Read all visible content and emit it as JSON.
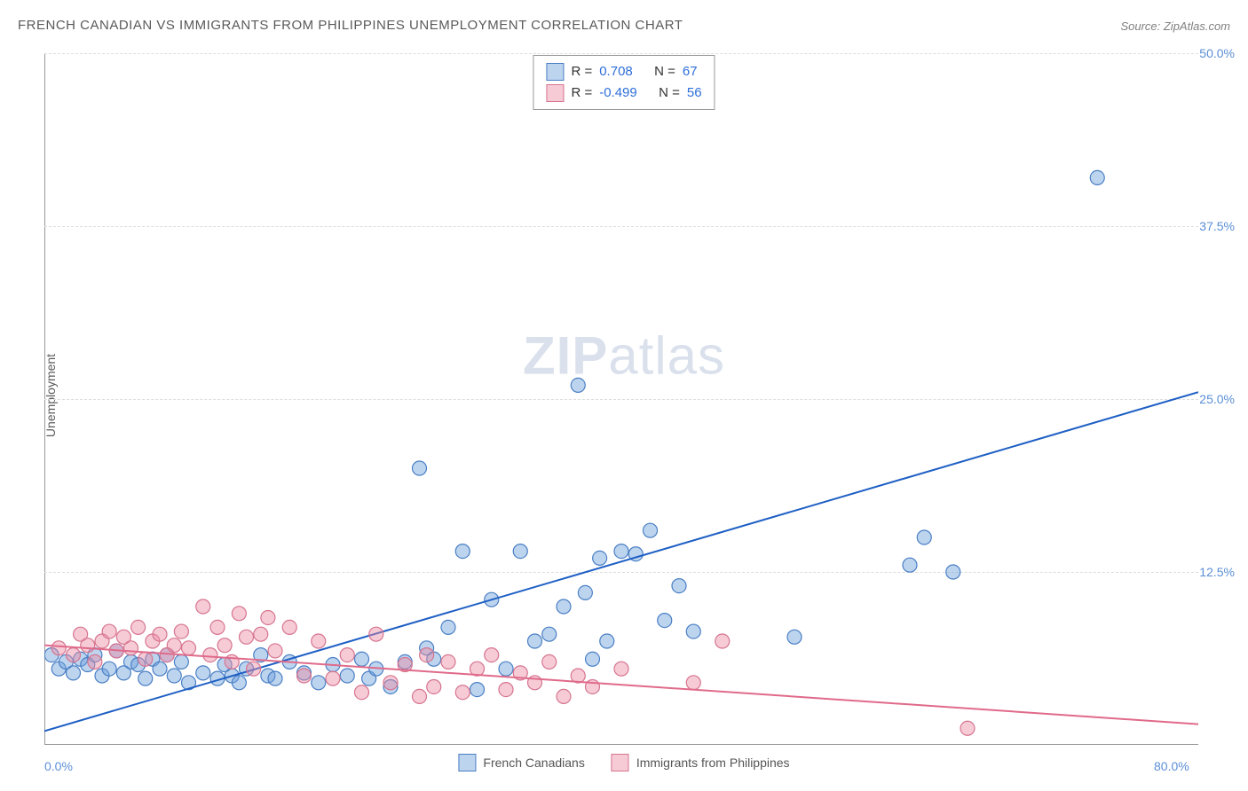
{
  "title": "FRENCH CANADIAN VS IMMIGRANTS FROM PHILIPPINES UNEMPLOYMENT CORRELATION CHART",
  "source": "Source: ZipAtlas.com",
  "ylabel": "Unemployment",
  "watermark_bold": "ZIP",
  "watermark_light": "atlas",
  "chart": {
    "type": "scatter-with-regression",
    "background_color": "#ffffff",
    "grid_color": "#dddddd",
    "axis_color": "#999999",
    "tick_label_color": "#5b8fd6",
    "xlim": [
      0,
      80
    ],
    "ylim": [
      0,
      50
    ],
    "x_ticks": [
      {
        "v": 0,
        "label": "0.0%"
      },
      {
        "v": 80,
        "label": "80.0%"
      }
    ],
    "y_ticks": [
      {
        "v": 12.5,
        "label": "12.5%"
      },
      {
        "v": 25,
        "label": "25.0%"
      },
      {
        "v": 37.5,
        "label": "37.5%"
      },
      {
        "v": 50,
        "label": "50.0%"
      }
    ],
    "marker_radius": 8,
    "marker_stroke_width": 1.2,
    "line_width": 2,
    "series": [
      {
        "name": "French Canadians",
        "color_fill": "rgba(108,160,220,0.45)",
        "color_stroke": "#4a7fc4",
        "line_color": "#1e5fc4",
        "R": "0.708",
        "N": "67",
        "regression": {
          "x1": 0,
          "y1": 1.0,
          "x2": 80,
          "y2": 25.5
        },
        "points": [
          [
            0.5,
            6.5
          ],
          [
            1,
            5.5
          ],
          [
            1.5,
            6
          ],
          [
            2,
            5.2
          ],
          [
            2.5,
            6.2
          ],
          [
            3,
            5.8
          ],
          [
            3.5,
            6.5
          ],
          [
            4,
            5
          ],
          [
            4.5,
            5.5
          ],
          [
            5,
            6.8
          ],
          [
            5.5,
            5.2
          ],
          [
            6,
            6
          ],
          [
            6.5,
            5.8
          ],
          [
            7,
            4.8
          ],
          [
            7.5,
            6.2
          ],
          [
            8,
            5.5
          ],
          [
            8.5,
            6.5
          ],
          [
            9,
            5
          ],
          [
            9.5,
            6
          ],
          [
            10,
            4.5
          ],
          [
            11,
            5.2
          ],
          [
            12,
            4.8
          ],
          [
            12.5,
            5.8
          ],
          [
            13,
            5
          ],
          [
            13.5,
            4.5
          ],
          [
            14,
            5.5
          ],
          [
            15,
            6.5
          ],
          [
            15.5,
            5
          ],
          [
            16,
            4.8
          ],
          [
            17,
            6
          ],
          [
            18,
            5.2
          ],
          [
            19,
            4.5
          ],
          [
            20,
            5.8
          ],
          [
            21,
            5
          ],
          [
            22,
            6.2
          ],
          [
            22.5,
            4.8
          ],
          [
            23,
            5.5
          ],
          [
            24,
            4.2
          ],
          [
            25,
            6
          ],
          [
            26,
            20
          ],
          [
            26.5,
            7
          ],
          [
            27,
            6.2
          ],
          [
            28,
            8.5
          ],
          [
            29,
            14
          ],
          [
            30,
            4
          ],
          [
            31,
            10.5
          ],
          [
            32,
            5.5
          ],
          [
            33,
            14
          ],
          [
            34,
            7.5
          ],
          [
            35,
            8
          ],
          [
            36,
            10
          ],
          [
            37,
            26
          ],
          [
            37.5,
            11
          ],
          [
            38,
            6.2
          ],
          [
            38.5,
            13.5
          ],
          [
            39,
            7.5
          ],
          [
            40,
            14
          ],
          [
            41,
            13.8
          ],
          [
            42,
            15.5
          ],
          [
            43,
            9
          ],
          [
            44,
            11.5
          ],
          [
            45,
            8.2
          ],
          [
            52,
            7.8
          ],
          [
            60,
            13
          ],
          [
            61,
            15
          ],
          [
            73,
            41
          ],
          [
            63,
            12.5
          ]
        ]
      },
      {
        "name": "Immigrants from Philippines",
        "color_fill": "rgba(235,140,165,0.45)",
        "color_stroke": "#d6748f",
        "line_color": "#e06a8a",
        "R": "-0.499",
        "N": "56",
        "regression": {
          "x1": 0,
          "y1": 7.2,
          "x2": 80,
          "y2": 1.5
        },
        "points": [
          [
            1,
            7
          ],
          [
            2,
            6.5
          ],
          [
            2.5,
            8
          ],
          [
            3,
            7.2
          ],
          [
            3.5,
            6
          ],
          [
            4,
            7.5
          ],
          [
            4.5,
            8.2
          ],
          [
            5,
            6.8
          ],
          [
            5.5,
            7.8
          ],
          [
            6,
            7
          ],
          [
            6.5,
            8.5
          ],
          [
            7,
            6.2
          ],
          [
            7.5,
            7.5
          ],
          [
            8,
            8
          ],
          [
            8.5,
            6.5
          ],
          [
            9,
            7.2
          ],
          [
            9.5,
            8.2
          ],
          [
            10,
            7
          ],
          [
            11,
            10
          ],
          [
            11.5,
            6.5
          ],
          [
            12,
            8.5
          ],
          [
            12.5,
            7.2
          ],
          [
            13,
            6
          ],
          [
            13.5,
            9.5
          ],
          [
            14,
            7.8
          ],
          [
            14.5,
            5.5
          ],
          [
            15,
            8
          ],
          [
            15.5,
            9.2
          ],
          [
            16,
            6.8
          ],
          [
            17,
            8.5
          ],
          [
            18,
            5
          ],
          [
            19,
            7.5
          ],
          [
            20,
            4.8
          ],
          [
            21,
            6.5
          ],
          [
            22,
            3.8
          ],
          [
            23,
            8
          ],
          [
            24,
            4.5
          ],
          [
            25,
            5.8
          ],
          [
            26,
            3.5
          ],
          [
            26.5,
            6.5
          ],
          [
            27,
            4.2
          ],
          [
            28,
            6
          ],
          [
            29,
            3.8
          ],
          [
            30,
            5.5
          ],
          [
            31,
            6.5
          ],
          [
            32,
            4
          ],
          [
            33,
            5.2
          ],
          [
            34,
            4.5
          ],
          [
            35,
            6
          ],
          [
            36,
            3.5
          ],
          [
            37,
            5
          ],
          [
            38,
            4.2
          ],
          [
            47,
            7.5
          ],
          [
            64,
            1.2
          ],
          [
            45,
            4.5
          ],
          [
            40,
            5.5
          ]
        ]
      }
    ]
  },
  "legend_top": {
    "r_label": "R =",
    "n_label": "N ="
  },
  "legend_bottom": [
    {
      "label": "French Canadians",
      "swatch": "blue"
    },
    {
      "label": "Immigrants from Philippines",
      "swatch": "pink"
    }
  ]
}
